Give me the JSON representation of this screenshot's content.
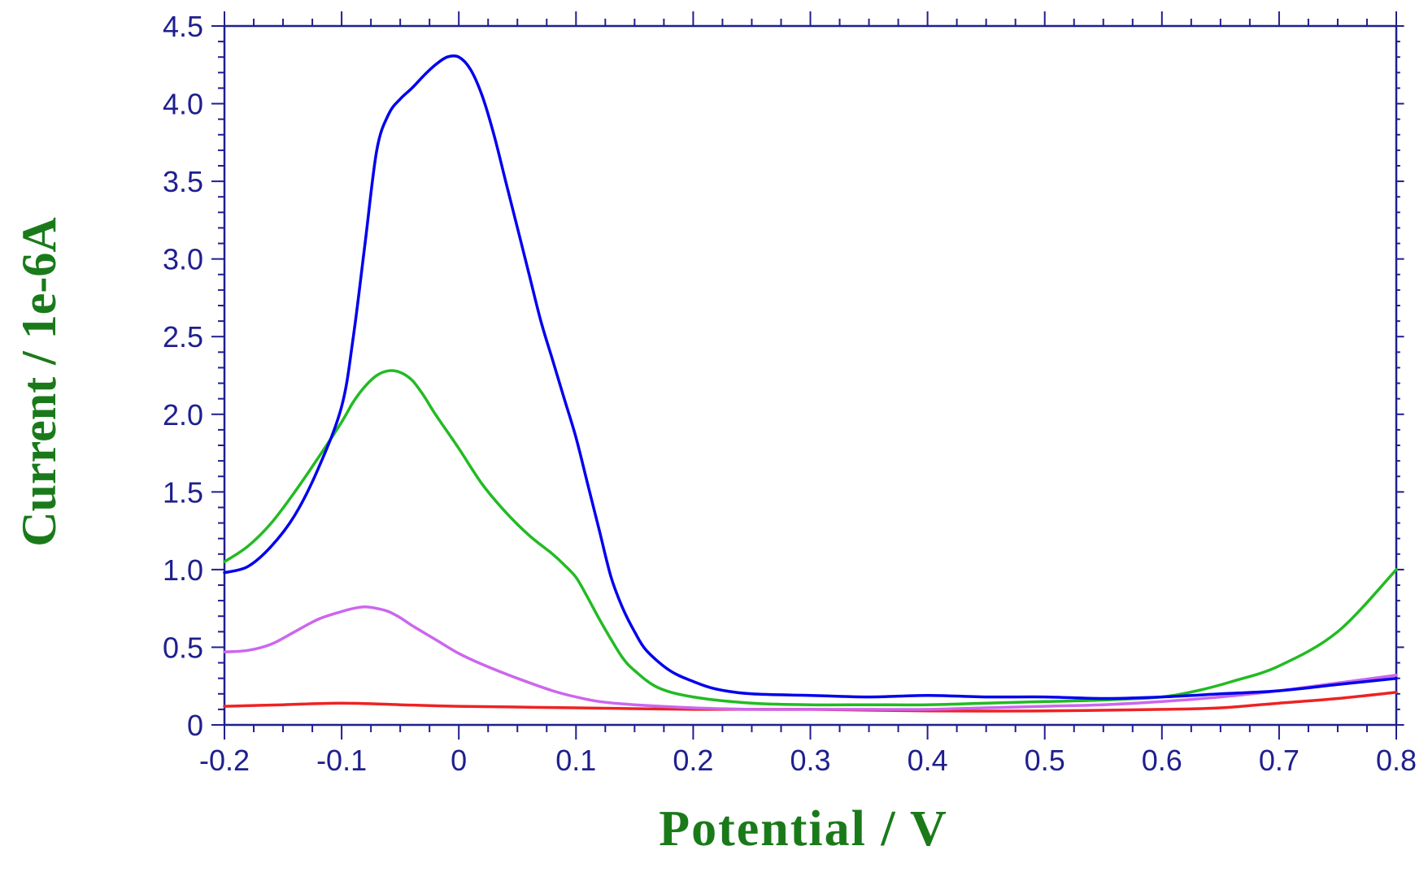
{
  "chart_data": {
    "type": "line",
    "title": "",
    "xlabel": "Potential / V",
    "ylabel": "Current / 1e-6A",
    "xlim": [
      -0.2,
      0.8
    ],
    "ylim": [
      0,
      4.5
    ],
    "x_ticks": [
      -0.2,
      -0.1,
      0,
      0.1,
      0.2,
      0.3,
      0.4,
      0.5,
      0.6,
      0.7,
      0.8
    ],
    "x_tick_labels": [
      "-0.2",
      "-0.1",
      "0",
      "0.1",
      "0.2",
      "0.3",
      "0.4",
      "0.5",
      "0.6",
      "0.7",
      "0.8"
    ],
    "y_ticks": [
      0,
      0.5,
      1.0,
      1.5,
      2.0,
      2.5,
      3.0,
      3.5,
      4.0,
      4.5
    ],
    "y_tick_labels": [
      "0",
      "0.5",
      "1.0",
      "1.5",
      "2.0",
      "2.5",
      "3.0",
      "3.5",
      "4.0",
      "4.5"
    ],
    "grid": false,
    "legend": "none",
    "axis_color": "#1f1f8f",
    "label_color": "#1a7a1a",
    "series": [
      {
        "color": "#0000ee",
        "x": [
          -0.2,
          -0.18,
          -0.16,
          -0.14,
          -0.12,
          -0.1,
          -0.09,
          -0.08,
          -0.07,
          -0.06,
          -0.05,
          -0.04,
          -0.03,
          -0.02,
          -0.01,
          0,
          0.01,
          0.02,
          0.03,
          0.04,
          0.05,
          0.06,
          0.07,
          0.08,
          0.09,
          0.1,
          0.11,
          0.12,
          0.13,
          0.14,
          0.15,
          0.16,
          0.18,
          0.2,
          0.22,
          0.25,
          0.3,
          0.35,
          0.4,
          0.45,
          0.5,
          0.55,
          0.6,
          0.65,
          0.7,
          0.75,
          0.8
        ],
        "y": [
          0.98,
          1.02,
          1.15,
          1.35,
          1.65,
          2.05,
          2.5,
          3.1,
          3.7,
          3.93,
          4.03,
          4.1,
          4.18,
          4.25,
          4.3,
          4.3,
          4.22,
          4.05,
          3.8,
          3.5,
          3.2,
          2.9,
          2.6,
          2.35,
          2.1,
          1.85,
          1.55,
          1.25,
          0.95,
          0.75,
          0.6,
          0.48,
          0.35,
          0.28,
          0.23,
          0.2,
          0.19,
          0.18,
          0.19,
          0.18,
          0.18,
          0.17,
          0.18,
          0.2,
          0.22,
          0.26,
          0.3
        ]
      },
      {
        "color": "#22bb22",
        "x": [
          -0.2,
          -0.18,
          -0.16,
          -0.14,
          -0.12,
          -0.1,
          -0.09,
          -0.08,
          -0.07,
          -0.06,
          -0.05,
          -0.04,
          -0.03,
          -0.02,
          0,
          0.02,
          0.04,
          0.06,
          0.08,
          0.09,
          0.1,
          0.11,
          0.12,
          0.13,
          0.14,
          0.15,
          0.17,
          0.2,
          0.25,
          0.3,
          0.35,
          0.4,
          0.45,
          0.5,
          0.55,
          0.6,
          0.63,
          0.66,
          0.7,
          0.75,
          0.8
        ],
        "y": [
          1.05,
          1.15,
          1.3,
          1.5,
          1.72,
          1.95,
          2.08,
          2.18,
          2.25,
          2.28,
          2.27,
          2.22,
          2.12,
          2.0,
          1.78,
          1.55,
          1.37,
          1.22,
          1.1,
          1.03,
          0.95,
          0.82,
          0.68,
          0.55,
          0.43,
          0.35,
          0.24,
          0.18,
          0.14,
          0.13,
          0.13,
          0.13,
          0.14,
          0.15,
          0.16,
          0.18,
          0.22,
          0.28,
          0.38,
          0.6,
          1.0
        ]
      },
      {
        "color": "#cc66ee",
        "x": [
          -0.2,
          -0.18,
          -0.16,
          -0.14,
          -0.12,
          -0.1,
          -0.09,
          -0.08,
          -0.07,
          -0.06,
          -0.05,
          -0.04,
          -0.02,
          0,
          0.02,
          0.05,
          0.08,
          0.1,
          0.12,
          0.15,
          0.2,
          0.25,
          0.3,
          0.35,
          0.4,
          0.45,
          0.5,
          0.55,
          0.6,
          0.65,
          0.7,
          0.75,
          0.8
        ],
        "y": [
          0.47,
          0.48,
          0.52,
          0.6,
          0.68,
          0.73,
          0.75,
          0.76,
          0.75,
          0.73,
          0.69,
          0.64,
          0.55,
          0.46,
          0.39,
          0.3,
          0.22,
          0.18,
          0.15,
          0.13,
          0.11,
          0.1,
          0.1,
          0.1,
          0.1,
          0.11,
          0.12,
          0.13,
          0.15,
          0.18,
          0.22,
          0.27,
          0.32
        ]
      },
      {
        "color": "#ee2222",
        "x": [
          -0.2,
          -0.15,
          -0.1,
          -0.05,
          0,
          0.1,
          0.2,
          0.3,
          0.4,
          0.5,
          0.6,
          0.65,
          0.7,
          0.75,
          0.8
        ],
        "y": [
          0.12,
          0.13,
          0.14,
          0.13,
          0.12,
          0.11,
          0.1,
          0.1,
          0.09,
          0.09,
          0.1,
          0.11,
          0.14,
          0.17,
          0.21
        ]
      }
    ]
  }
}
